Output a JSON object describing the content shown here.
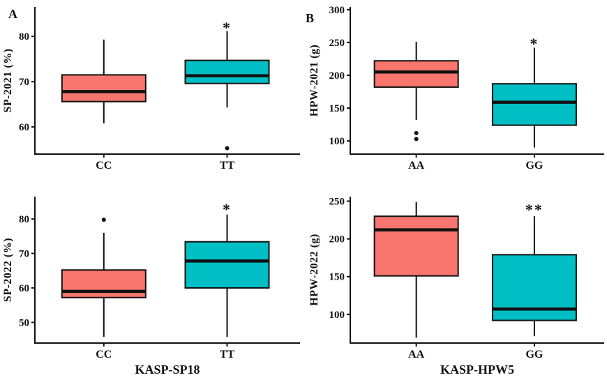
{
  "figure": {
    "background": "#ffffff",
    "panel_labels": [
      "A",
      "B"
    ]
  },
  "colors": {
    "box_fill_left_genotype": "#F8766D",
    "box_fill_right_genotype": "#00BFC4",
    "axis_and_text": "#111111"
  },
  "chart_data": [
    {
      "type": "box",
      "panel_label": "A",
      "ylabel": "SP-2021 (%)",
      "xlabel": null,
      "ylim": [
        54,
        86.5
      ],
      "yticks": [
        60,
        70,
        80
      ],
      "grid": false,
      "categories": [
        "CC",
        "TT"
      ],
      "series": [
        {
          "genotype": "CC",
          "fill": "#F8766D",
          "whisker_low": 60.8,
          "q1": 65.6,
          "median": 67.8,
          "q3": 71.5,
          "whisker_high": 79.3,
          "outliers": [],
          "significance": null,
          "significance_y": null
        },
        {
          "genotype": "TT",
          "fill": "#00BFC4",
          "whisker_low": 64.3,
          "q1": 69.6,
          "median": 71.3,
          "q3": 74.7,
          "whisker_high": 81.2,
          "outliers": [
            55.3
          ],
          "significance": "*",
          "significance_y": 82.8
        }
      ]
    },
    {
      "type": "box",
      "panel_label": "B",
      "ylabel": "HPW-2021 (g)",
      "xlabel": null,
      "ylim": [
        80,
        304
      ],
      "yticks": [
        100,
        150,
        200,
        250,
        300
      ],
      "grid": false,
      "categories": [
        "AA",
        "GG"
      ],
      "series": [
        {
          "genotype": "AA",
          "fill": "#F8766D",
          "whisker_low": 132,
          "q1": 182,
          "median": 205,
          "q3": 222,
          "whisker_high": 251,
          "outliers": [
            112,
            103
          ],
          "significance": null,
          "significance_y": null
        },
        {
          "genotype": "GG",
          "fill": "#00BFC4",
          "whisker_low": 90,
          "q1": 124,
          "median": 159,
          "q3": 187,
          "whisker_high": 242,
          "outliers": [],
          "significance": "*",
          "significance_y": 254
        }
      ]
    },
    {
      "type": "box",
      "panel_label": null,
      "ylabel": "SP-2022 (%)",
      "xlabel": "KASP-SP18",
      "ylim": [
        44,
        86.5
      ],
      "yticks": [
        50,
        60,
        70,
        80
      ],
      "grid": false,
      "categories": [
        "CC",
        "TT"
      ],
      "series": [
        {
          "genotype": "CC",
          "fill": "#F8766D",
          "whisker_low": 45.8,
          "q1": 57.2,
          "median": 59.0,
          "q3": 65.2,
          "whisker_high": 76.0,
          "outliers": [
            79.8
          ],
          "significance": null,
          "significance_y": null
        },
        {
          "genotype": "TT",
          "fill": "#00BFC4",
          "whisker_low": 45.8,
          "q1": 60.0,
          "median": 67.8,
          "q3": 73.4,
          "whisker_high": 81.3,
          "outliers": [],
          "significance": "*",
          "significance_y": 84.0
        }
      ]
    },
    {
      "type": "box",
      "panel_label": null,
      "ylabel": "HPW-2022 (g)",
      "xlabel": "KASP-HPW5",
      "ylim": [
        62,
        256
      ],
      "yticks": [
        100,
        150,
        200,
        250
      ],
      "grid": false,
      "categories": [
        "AA",
        "GG"
      ],
      "series": [
        {
          "genotype": "AA",
          "fill": "#F8766D",
          "whisker_low": 69,
          "q1": 151,
          "median": 212,
          "q3": 230,
          "whisker_high": 249,
          "outliers": [],
          "significance": null,
          "significance_y": null
        },
        {
          "genotype": "GG",
          "fill": "#00BFC4",
          "whisker_low": 71,
          "q1": 92,
          "median": 107,
          "q3": 179,
          "whisker_high": 230,
          "outliers": [],
          "significance": "**",
          "significance_y": 244
        }
      ]
    }
  ]
}
